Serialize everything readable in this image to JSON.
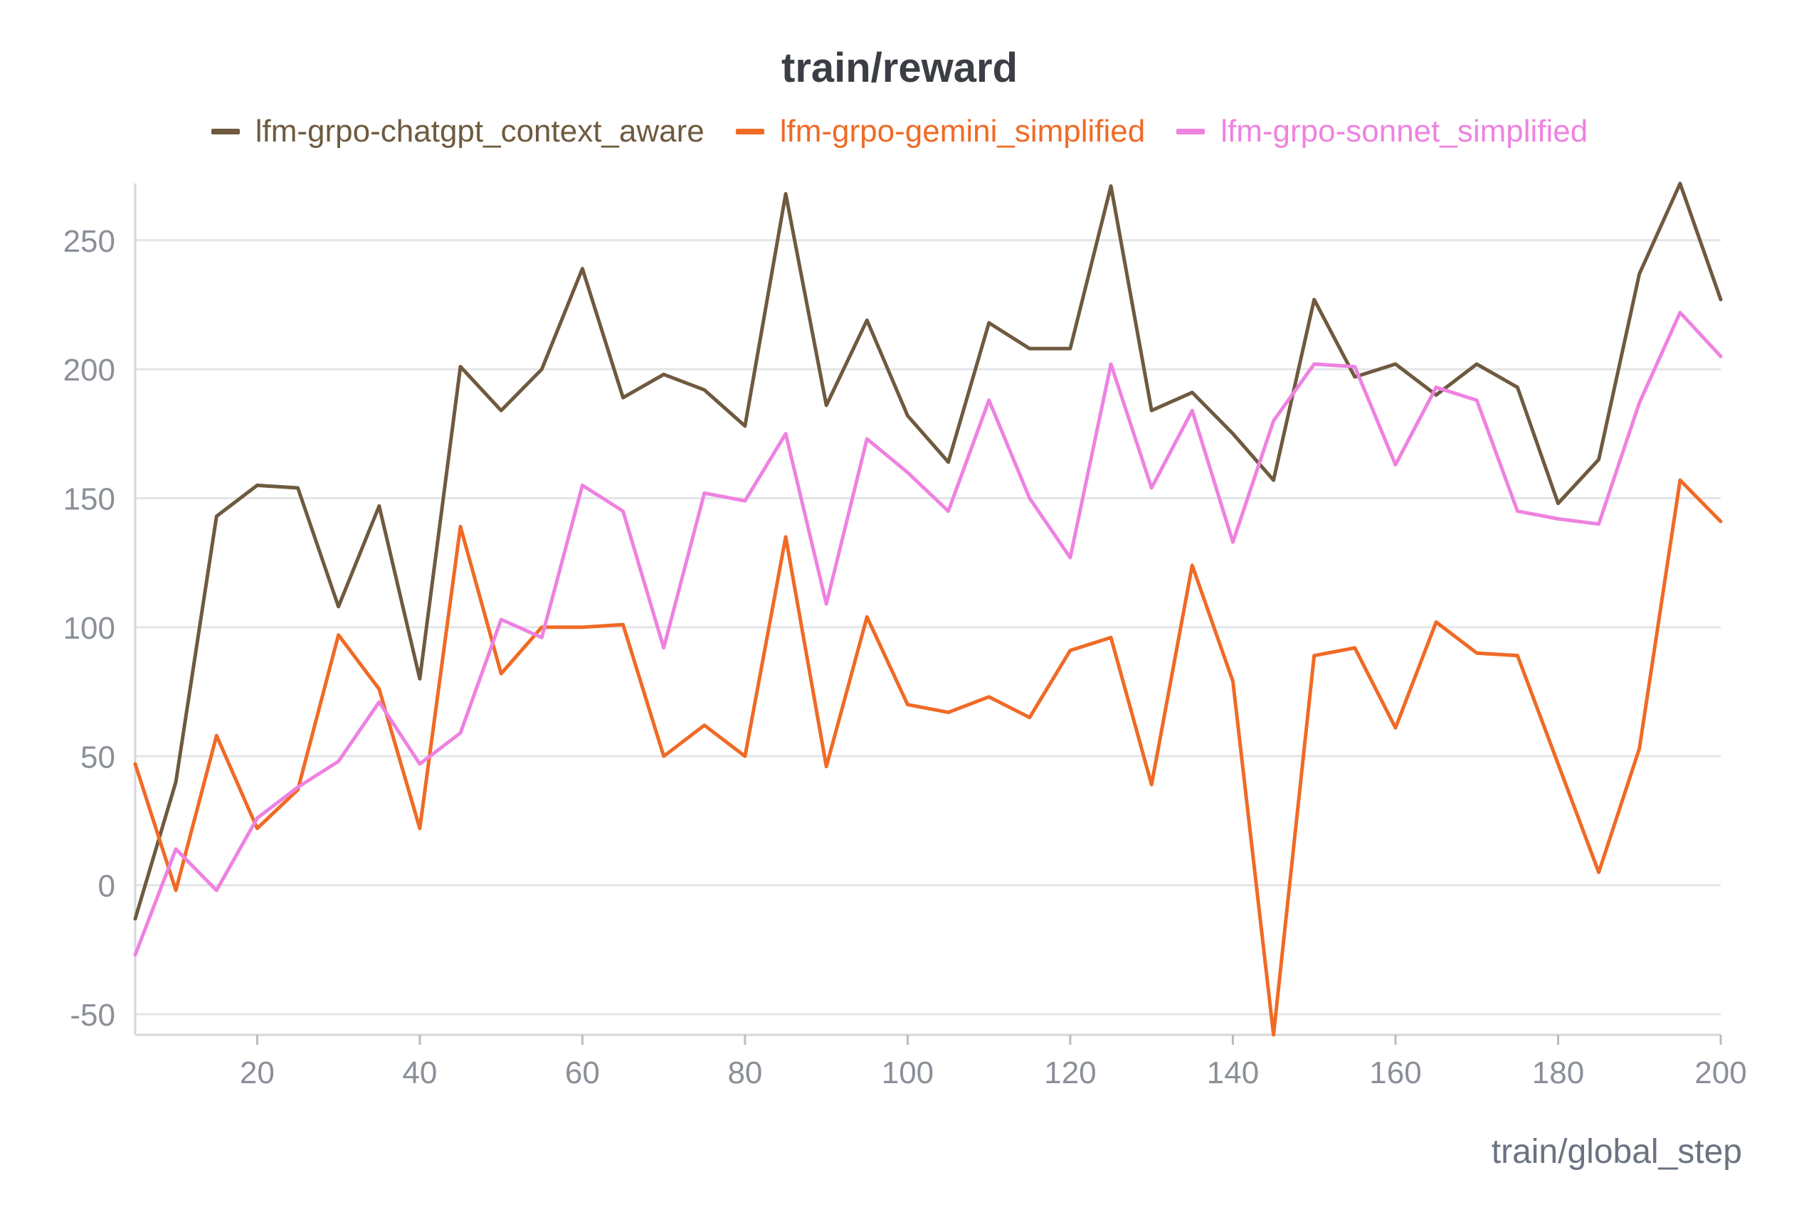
{
  "chart_data": {
    "type": "line",
    "title": "train/reward",
    "xlabel": "train/global_step",
    "ylabel": "",
    "xlim": [
      5,
      200
    ],
    "ylim": [
      -58,
      272
    ],
    "xticks": [
      20,
      40,
      60,
      80,
      100,
      120,
      140,
      160,
      180,
      200
    ],
    "yticks": [
      -50,
      0,
      50,
      100,
      150,
      200,
      250
    ],
    "grid": true,
    "legend_position": "top-center",
    "x": [
      5,
      10,
      15,
      20,
      25,
      30,
      35,
      40,
      45,
      50,
      55,
      60,
      65,
      70,
      75,
      80,
      85,
      90,
      95,
      100,
      105,
      110,
      115,
      120,
      125,
      130,
      135,
      140,
      145,
      150,
      155,
      160,
      165,
      170,
      175,
      180,
      185,
      190,
      195,
      200
    ],
    "series": [
      {
        "name": "lfm-grpo-chatgpt_context_aware",
        "color": "#6f5a3f",
        "values": [
          -13,
          40,
          143,
          155,
          154,
          108,
          147,
          80,
          201,
          184,
          200,
          239,
          189,
          198,
          192,
          178,
          268,
          186,
          219,
          182,
          164,
          218,
          208,
          208,
          271,
          184,
          191,
          175,
          157,
          227,
          197,
          202,
          190,
          202,
          193,
          148,
          165,
          237,
          272,
          227
        ]
      },
      {
        "name": "lfm-grpo-gemini_simplified",
        "color": "#f06a25",
        "values": [
          47,
          -2,
          58,
          22,
          37,
          97,
          76,
          22,
          139,
          82,
          100,
          100,
          101,
          50,
          62,
          50,
          135,
          46,
          104,
          70,
          67,
          73,
          65,
          91,
          96,
          39,
          124,
          79,
          -58,
          89,
          92,
          61,
          102,
          90,
          89,
          47,
          5,
          53,
          157,
          141
        ]
      },
      {
        "name": "lfm-grpo-sonnet_simplified",
        "color": "#ee82e0",
        "values": [
          -27,
          14,
          -2,
          26,
          38,
          48,
          71,
          47,
          59,
          103,
          96,
          155,
          145,
          92,
          152,
          149,
          175,
          109,
          173,
          160,
          145,
          188,
          150,
          127,
          202,
          154,
          184,
          133,
          180,
          202,
          201,
          163,
          193,
          188,
          145,
          142,
          140,
          187,
          222,
          205
        ]
      }
    ]
  }
}
